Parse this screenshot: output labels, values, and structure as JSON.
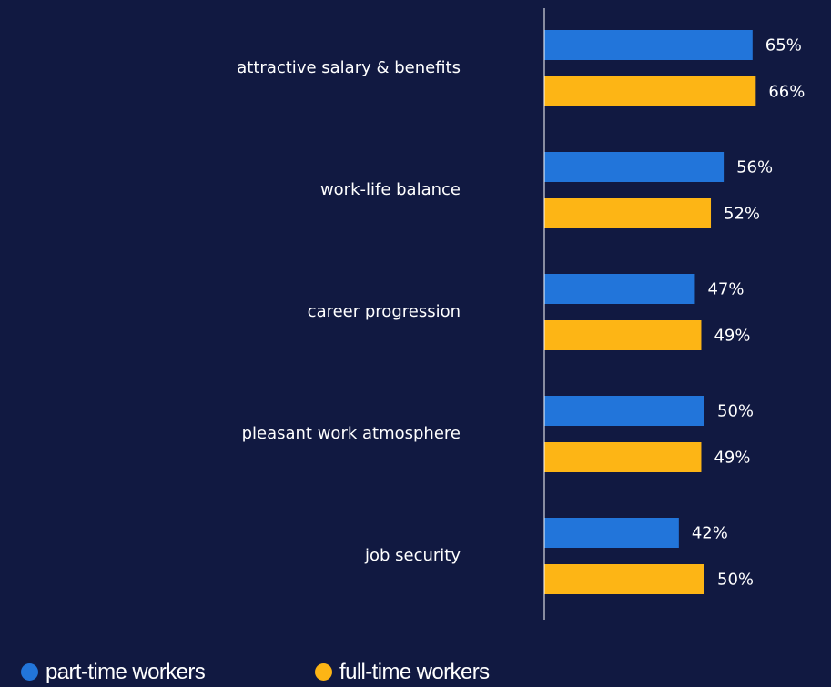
{
  "chart_data": {
    "type": "bar",
    "orientation": "horizontal",
    "categories": [
      "attractive salary & benefits",
      "work-life balance",
      "career progression",
      "pleasant work atmosphere",
      "job security"
    ],
    "series": [
      {
        "name": "part-time workers",
        "color": "#2275DA",
        "values": [
          65,
          56,
          47,
          50,
          42
        ],
        "labels": [
          "65%",
          "56%",
          "47%",
          "50%",
          "42%"
        ]
      },
      {
        "name": "full-time workers",
        "color": "#FDB515",
        "values": [
          66,
          52,
          49,
          49,
          50
        ],
        "labels": [
          "66%",
          "52%",
          "49%",
          "49%",
          "50%"
        ]
      }
    ],
    "unit": "%",
    "xlim": [
      0,
      100
    ],
    "grid": false,
    "legend_position": "bottom-left"
  },
  "colors": {
    "background": "#111941",
    "axis": "#ffffff",
    "text": "#ffffff"
  }
}
